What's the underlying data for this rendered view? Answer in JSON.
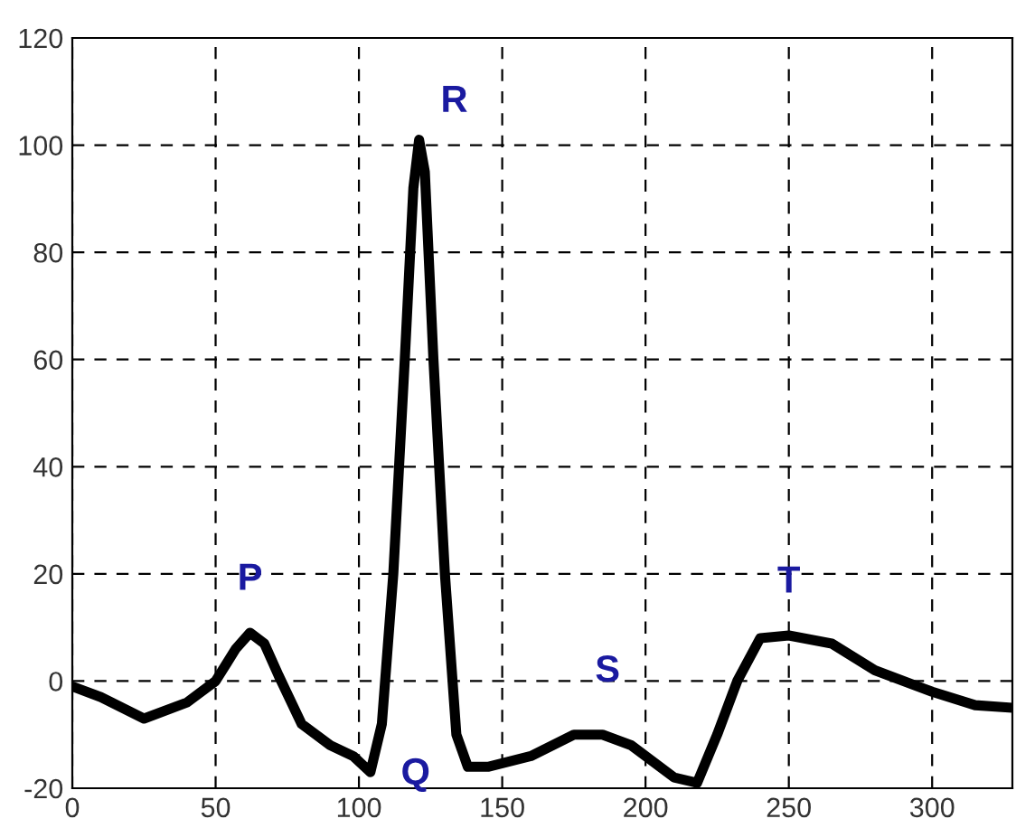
{
  "chart_data": {
    "type": "line",
    "x": [
      0,
      10,
      25,
      40,
      50,
      57,
      62,
      67,
      72,
      80,
      90,
      98,
      104,
      108,
      112,
      116,
      119,
      121,
      123,
      126,
      130,
      134,
      138,
      145,
      160,
      175,
      185,
      195,
      210,
      218,
      225,
      232,
      240,
      250,
      265,
      280,
      300,
      315,
      328
    ],
    "values": [
      -1,
      -3,
      -7,
      -4,
      0,
      6,
      9,
      7,
      1,
      -8,
      -12,
      -14,
      -17,
      -8,
      20,
      60,
      92,
      101,
      95,
      60,
      20,
      -10,
      -16,
      -16,
      -14,
      -10,
      -10,
      -12,
      -18,
      -19,
      -10,
      0,
      8,
      8.5,
      7,
      2,
      -2,
      -4.5,
      -5
    ],
    "color": "#000000",
    "line_style": "solid",
    "marker": "none",
    "xlim": [
      0,
      328
    ],
    "ylim": [
      -20,
      120
    ],
    "xticks": [
      0,
      50,
      100,
      150,
      200,
      250,
      300
    ],
    "yticks": [
      -20,
      0,
      20,
      40,
      60,
      80,
      100,
      120
    ],
    "grid": true,
    "annotations": [
      {
        "text": "P",
        "x": 62,
        "y": 9
      },
      {
        "text": "R",
        "x": 121,
        "y": 101
      },
      {
        "text": "Q",
        "x": 104,
        "y": -17
      },
      {
        "text": "S",
        "x": 185,
        "y": -10
      },
      {
        "text": "T",
        "x": 250,
        "y": 8.5
      }
    ]
  }
}
